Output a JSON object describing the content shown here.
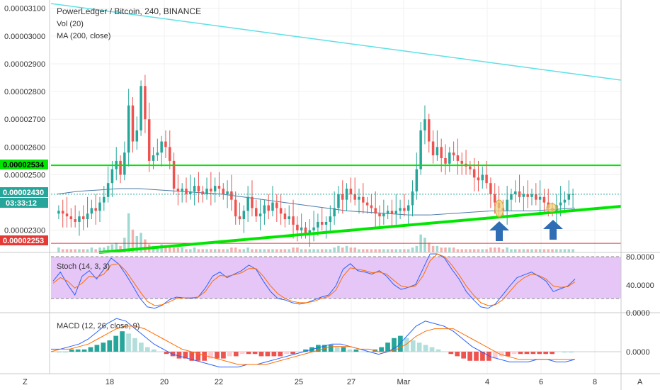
{
  "header": {
    "title": "PowerLedger / Bitcoin, 240, BINANCE",
    "vol_label": "Vol (20)",
    "ma_label": "MA (200, close)"
  },
  "stoch": {
    "label": "Stoch (14, 3, 3)",
    "ticks": [
      "80.0000",
      "40.0000"
    ]
  },
  "macd": {
    "label": "MACD (12, 26, close, 9)",
    "ticks": [
      "0.0000",
      "0.0000"
    ]
  },
  "corner": {
    "left": "Z",
    "right": "A"
  },
  "price_tags": {
    "green": "0.00002534",
    "current": "0.00002430",
    "countdown": "03:33:12",
    "red": "0.00002253"
  },
  "colors": {
    "up": "#26a69a",
    "down": "#ef5350",
    "green_line": "#00e600",
    "red_line": "#e53935",
    "cyan_line": "#5ce1e6",
    "ma_line": "#4e79a7",
    "arrow": "#2f6db5",
    "stoch_bg": "#e5c6f7"
  },
  "icons": [
    "up-arrow-icon",
    "up-arrow-icon"
  ],
  "chart_data": [
    {
      "type": "candlestick",
      "title": "PowerLedger / Bitcoin, 240, BINANCE",
      "x_ticks": [
        "18",
        "20",
        "22",
        "25",
        "27",
        "Mar",
        "4",
        "6",
        "8"
      ],
      "y_ticks": [
        "0.00003100",
        "0.00003000",
        "0.00002900",
        "0.00002800",
        "0.00002700",
        "0.00002600",
        "0.00002500",
        "0.00002300"
      ],
      "y_range": [
        2.22e-05,
        3.13e-05
      ],
      "candle_close": [
        2.37,
        2.36,
        2.35,
        2.34,
        2.33,
        2.35,
        2.34,
        2.36,
        2.38,
        2.37,
        2.4,
        2.42,
        2.47,
        2.52,
        2.55,
        2.5,
        2.58,
        2.75,
        2.62,
        2.66,
        2.82,
        2.7,
        2.55,
        2.57,
        2.58,
        2.62,
        2.6,
        2.55,
        2.45,
        2.44,
        2.45,
        2.43,
        2.44,
        2.46,
        2.44,
        2.43,
        2.45,
        2.44,
        2.46,
        2.45,
        2.43,
        2.44,
        2.41,
        2.35,
        2.34,
        2.37,
        2.42,
        2.38,
        2.35,
        2.36,
        2.39,
        2.37,
        2.4,
        2.38,
        2.36,
        2.34,
        2.35,
        2.32,
        2.3,
        2.31,
        2.29,
        2.3,
        2.31,
        2.33,
        2.32,
        2.33,
        2.35,
        2.38,
        2.43,
        2.41,
        2.45,
        2.43,
        2.41,
        2.42,
        2.4,
        2.39,
        2.38,
        2.36,
        2.35,
        2.36,
        2.37,
        2.36,
        2.37,
        2.38,
        2.37,
        2.39,
        2.44,
        2.52,
        2.66,
        2.7,
        2.62,
        2.57,
        2.6,
        2.56,
        2.54,
        2.58,
        2.57,
        2.55,
        2.54,
        2.53,
        2.52,
        2.49,
        2.48,
        2.5,
        2.47,
        2.43,
        2.4,
        2.38,
        2.37,
        2.41,
        2.43,
        2.44,
        2.42,
        2.43,
        2.42,
        2.43,
        2.41,
        2.42,
        2.4,
        2.38,
        2.37,
        2.39,
        2.4,
        2.41,
        2.43,
        2.43
      ],
      "price_levels": {
        "resistance_green": 2.534e-05,
        "support_red": 2.253e-05,
        "current": 2.43e-05
      },
      "series": [
        {
          "name": "Vol (20)",
          "values": [
            3,
            2,
            2,
            2,
            2,
            2,
            2,
            2,
            3,
            2,
            3,
            3,
            4,
            5,
            6,
            4,
            9,
            24,
            14,
            10,
            12,
            8,
            5,
            4,
            4,
            5,
            4,
            4,
            3,
            3,
            3,
            2,
            2,
            3,
            2,
            2,
            2,
            2,
            2,
            2,
            2,
            2,
            3,
            3,
            2,
            2,
            3,
            2,
            2,
            2,
            2,
            2,
            2,
            2,
            2,
            2,
            2,
            3,
            3,
            2,
            2,
            2,
            2,
            2,
            2,
            2,
            2,
            3,
            4,
            3,
            4,
            3,
            3,
            2,
            2,
            2,
            2,
            2,
            2,
            2,
            2,
            2,
            2,
            2,
            2,
            2,
            3,
            4,
            11,
            9,
            6,
            4,
            4,
            3,
            3,
            3,
            3,
            2,
            2,
            2,
            2,
            2,
            2,
            2,
            2,
            3,
            3,
            3,
            2,
            3,
            2,
            2,
            2,
            2,
            2,
            2,
            2,
            2,
            2,
            2,
            2,
            2,
            2,
            2,
            2,
            2
          ]
        },
        {
          "name": "MA (200, close)",
          "values": [
            2.43,
            2.44,
            2.445,
            2.45,
            2.45,
            2.445,
            2.44,
            2.435,
            2.43,
            2.42,
            2.41,
            2.4,
            2.39,
            2.38,
            2.37,
            2.365,
            2.36,
            2.355,
            2.355,
            2.36,
            2.365,
            2.37,
            2.37,
            2.37,
            2.375,
            2.38
          ]
        }
      ]
    },
    {
      "type": "line",
      "title": "Stoch (14, 3, 3)",
      "ylim": [
        0,
        100
      ],
      "y_ticks": [
        "80.0000",
        "40.0000"
      ],
      "series": [
        {
          "name": "%K",
          "values": [
            45,
            58,
            40,
            25,
            52,
            60,
            48,
            62,
            78,
            70,
            55,
            38,
            20,
            8,
            6,
            10,
            18,
            22,
            21,
            20,
            22,
            35,
            52,
            58,
            50,
            55,
            60,
            68,
            62,
            45,
            30,
            20,
            18,
            14,
            12,
            14,
            18,
            22,
            25,
            38,
            62,
            70,
            60,
            58,
            55,
            60,
            52,
            40,
            33,
            36,
            40,
            62,
            84,
            88,
            78,
            62,
            48,
            30,
            18,
            8,
            6,
            12,
            25,
            38,
            50,
            54,
            58,
            52,
            45,
            30,
            34,
            38,
            48
          ]
        },
        {
          "name": "%D",
          "values": [
            42,
            50,
            45,
            35,
            42,
            52,
            50,
            55,
            68,
            70,
            60,
            45,
            30,
            16,
            10,
            11,
            15,
            20,
            21,
            21,
            22,
            30,
            45,
            53,
            52,
            54,
            57,
            63,
            63,
            52,
            38,
            27,
            20,
            16,
            14,
            14,
            16,
            20,
            23,
            32,
            52,
            64,
            62,
            60,
            57,
            58,
            55,
            46,
            38,
            36,
            38,
            52,
            74,
            84,
            80,
            68,
            54,
            38,
            25,
            14,
            10,
            11,
            18,
            30,
            42,
            50,
            55,
            53,
            48,
            38,
            36,
            37,
            44
          ]
        }
      ]
    },
    {
      "type": "bar",
      "title": "MACD (12, 26, close, 9)",
      "y_ticks": [
        "0.0000",
        "0.0000"
      ],
      "series": [
        {
          "name": "MACD histogram",
          "values": [
            0,
            0,
            1,
            1,
            1,
            2,
            3,
            4,
            5,
            7,
            9,
            8,
            6,
            4,
            2,
            1,
            0,
            -1,
            -2,
            -3,
            -3,
            -4,
            -4,
            -4,
            -3,
            -3,
            -3,
            -2,
            -2,
            -1,
            -1,
            -1,
            -2,
            -2,
            -2,
            -2,
            -1,
            -1,
            0,
            1,
            2,
            3,
            3,
            3,
            2,
            2,
            1,
            1,
            0,
            0,
            1,
            2,
            4,
            6,
            7,
            6,
            5,
            4,
            3,
            2,
            1,
            0,
            -1,
            -2,
            -3,
            -4,
            -4,
            -4,
            -4,
            -3,
            -2,
            -2,
            -1,
            -1,
            -1,
            -1,
            -1,
            -1,
            -1,
            0,
            0,
            0
          ]
        },
        {
          "name": "MACD",
          "values": [
            1,
            1,
            2,
            3,
            5,
            8,
            11,
            13,
            12,
            9,
            6,
            3,
            1,
            -1,
            -2,
            -3,
            -4,
            -5,
            -6,
            -6,
            -6,
            -5,
            -5,
            -4,
            -3,
            -2,
            -1,
            0,
            1,
            2,
            3,
            3,
            2,
            1,
            0,
            -1,
            0,
            2,
            6,
            10,
            12,
            11,
            10,
            8,
            5,
            2,
            0,
            -2,
            -3,
            -4,
            -4,
            -4,
            -3,
            -3,
            -4,
            -4,
            -3
          ]
        },
        {
          "name": "Signal",
          "values": [
            0,
            1,
            1,
            2,
            3,
            5,
            7,
            9,
            10,
            10,
            9,
            7,
            5,
            3,
            1,
            0,
            -1,
            -2,
            -3,
            -4,
            -5,
            -5,
            -5,
            -5,
            -4,
            -3,
            -2,
            -1,
            0,
            1,
            2,
            2,
            2,
            1,
            1,
            0,
            0,
            1,
            3,
            6,
            8,
            9,
            9,
            9,
            7,
            5,
            3,
            1,
            -1,
            -2,
            -3,
            -3,
            -3,
            -3,
            -3,
            -3,
            -3
          ]
        }
      ]
    }
  ]
}
